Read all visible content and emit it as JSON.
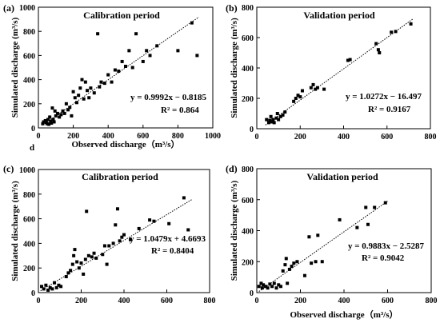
{
  "stray_label": "d",
  "chart_data": [
    {
      "type": "scatter",
      "panel_label": "(a)",
      "title": "Calibration period",
      "xlabel": "Observed discharge（m³/s）",
      "ylabel": "Simulated discharge (m³/s)",
      "xlim": [
        0,
        1000
      ],
      "ylim": [
        0,
        1000
      ],
      "xticks": [
        0,
        200,
        400,
        600,
        800,
        1000
      ],
      "yticks": [
        0,
        200,
        400,
        600,
        800,
        1000
      ],
      "equation": "y = 0.9992x − 0.8185",
      "r2": "R² = 0.864",
      "fit": {
        "slope": 0.9992,
        "intercept": -0.8185,
        "x_range": [
          25,
          920
        ]
      },
      "points": [
        [
          25,
          35
        ],
        [
          30,
          50
        ],
        [
          40,
          60
        ],
        [
          45,
          45
        ],
        [
          50,
          35
        ],
        [
          55,
          70
        ],
        [
          60,
          30
        ],
        [
          65,
          90
        ],
        [
          70,
          55
        ],
        [
          75,
          40
        ],
        [
          80,
          165
        ],
        [
          85,
          70
        ],
        [
          90,
          50
        ],
        [
          95,
          140
        ],
        [
          100,
          100
        ],
        [
          110,
          120
        ],
        [
          120,
          90
        ],
        [
          130,
          110
        ],
        [
          140,
          140
        ],
        [
          150,
          120
        ],
        [
          160,
          200
        ],
        [
          170,
          150
        ],
        [
          180,
          170
        ],
        [
          190,
          100
        ],
        [
          200,
          300
        ],
        [
          210,
          250
        ],
        [
          220,
          210
        ],
        [
          230,
          270
        ],
        [
          240,
          330
        ],
        [
          250,
          400
        ],
        [
          260,
          240
        ],
        [
          270,
          380
        ],
        [
          280,
          310
        ],
        [
          290,
          250
        ],
        [
          300,
          330
        ],
        [
          320,
          290
        ],
        [
          340,
          780
        ],
        [
          350,
          340
        ],
        [
          360,
          380
        ],
        [
          380,
          370
        ],
        [
          400,
          440
        ],
        [
          420,
          380
        ],
        [
          440,
          480
        ],
        [
          460,
          470
        ],
        [
          480,
          550
        ],
        [
          500,
          510
        ],
        [
          520,
          640
        ],
        [
          540,
          500
        ],
        [
          560,
          780
        ],
        [
          600,
          550
        ],
        [
          620,
          640
        ],
        [
          640,
          600
        ],
        [
          680,
          680
        ],
        [
          800,
          640
        ],
        [
          880,
          870
        ],
        [
          910,
          600
        ]
      ]
    },
    {
      "type": "scatter",
      "panel_label": "(b)",
      "title": "Validation period",
      "xlabel": "",
      "ylabel": "Simulated discharge (m³/s)",
      "xlim": [
        0,
        800
      ],
      "ylim": [
        0,
        800
      ],
      "xticks": [
        0,
        200,
        400,
        600,
        800
      ],
      "yticks": [
        0,
        200,
        400,
        600,
        800
      ],
      "equation": "y = 1.0272x − 16.497",
      "r2": "R² = 0.9167",
      "fit": {
        "slope": 1.0272,
        "intercept": -16.497,
        "x_range": [
          40,
          720
        ]
      },
      "points": [
        [
          45,
          60
        ],
        [
          55,
          40
        ],
        [
          60,
          55
        ],
        [
          65,
          80
        ],
        [
          70,
          45
        ],
        [
          75,
          60
        ],
        [
          80,
          40
        ],
        [
          90,
          70
        ],
        [
          95,
          100
        ],
        [
          100,
          60
        ],
        [
          110,
          80
        ],
        [
          120,
          90
        ],
        [
          130,
          110
        ],
        [
          170,
          180
        ],
        [
          180,
          200
        ],
        [
          190,
          220
        ],
        [
          200,
          210
        ],
        [
          210,
          250
        ],
        [
          250,
          270
        ],
        [
          260,
          290
        ],
        [
          270,
          260
        ],
        [
          280,
          270
        ],
        [
          310,
          260
        ],
        [
          420,
          450
        ],
        [
          430,
          455
        ],
        [
          550,
          560
        ],
        [
          560,
          520
        ],
        [
          565,
          500
        ],
        [
          620,
          635
        ],
        [
          640,
          640
        ],
        [
          710,
          690
        ]
      ]
    },
    {
      "type": "scatter",
      "panel_label": "(c)",
      "title": "Calibration period",
      "xlabel": "",
      "ylabel": "Simulated discharge (m³/s)",
      "xlim": [
        0,
        800
      ],
      "ylim": [
        0,
        1000
      ],
      "xticks": [
        0,
        200,
        400,
        600,
        800
      ],
      "yticks": [
        0,
        200,
        400,
        600,
        800,
        1000
      ],
      "equation": "y = 1.0479x + 4.6693",
      "r2": "R² = 0.8404",
      "fit": {
        "slope": 1.0479,
        "intercept": 4.6693,
        "x_range": [
          10,
          720
        ]
      },
      "points": [
        [
          15,
          50
        ],
        [
          25,
          30
        ],
        [
          35,
          60
        ],
        [
          45,
          20
        ],
        [
          55,
          40
        ],
        [
          65,
          30
        ],
        [
          75,
          80
        ],
        [
          85,
          40
        ],
        [
          95,
          60
        ],
        [
          105,
          50
        ],
        [
          130,
          130
        ],
        [
          140,
          160
        ],
        [
          150,
          180
        ],
        [
          160,
          230
        ],
        [
          165,
          300
        ],
        [
          170,
          350
        ],
        [
          180,
          250
        ],
        [
          190,
          200
        ],
        [
          200,
          240
        ],
        [
          210,
          150
        ],
        [
          220,
          270
        ],
        [
          225,
          660
        ],
        [
          235,
          300
        ],
        [
          250,
          290
        ],
        [
          260,
          320
        ],
        [
          270,
          280
        ],
        [
          300,
          310
        ],
        [
          310,
          380
        ],
        [
          320,
          230
        ],
        [
          330,
          380
        ],
        [
          350,
          400
        ],
        [
          360,
          550
        ],
        [
          370,
          680
        ],
        [
          380,
          420
        ],
        [
          390,
          450
        ],
        [
          400,
          470
        ],
        [
          430,
          430
        ],
        [
          470,
          520
        ],
        [
          520,
          590
        ],
        [
          540,
          580
        ],
        [
          610,
          560
        ],
        [
          680,
          770
        ],
        [
          700,
          510
        ]
      ]
    },
    {
      "type": "scatter",
      "panel_label": "(d)",
      "title": "Validation period",
      "xlabel": "Observed discharge（m³/s）",
      "ylabel": "Simulated discharge (m³/s)",
      "xlim": [
        0,
        800
      ],
      "ylim": [
        0,
        800
      ],
      "xticks": [
        0,
        200,
        400,
        600,
        800
      ],
      "yticks": [
        0,
        200,
        400,
        600,
        800
      ],
      "equation": "y = 0.9883x − 2.5287",
      "r2": "R² = 0.9042",
      "fit": {
        "slope": 0.9883,
        "intercept": -2.5287,
        "x_range": [
          10,
          600
        ]
      },
      "points": [
        [
          10,
          40
        ],
        [
          20,
          60
        ],
        [
          25,
          30
        ],
        [
          30,
          50
        ],
        [
          40,
          40
        ],
        [
          50,
          30
        ],
        [
          60,
          55
        ],
        [
          70,
          40
        ],
        [
          80,
          60
        ],
        [
          90,
          30
        ],
        [
          100,
          50
        ],
        [
          110,
          40
        ],
        [
          120,
          140
        ],
        [
          130,
          180
        ],
        [
          135,
          220
        ],
        [
          140,
          60
        ],
        [
          150,
          150
        ],
        [
          160,
          170
        ],
        [
          170,
          190
        ],
        [
          185,
          200
        ],
        [
          220,
          110
        ],
        [
          240,
          360
        ],
        [
          250,
          190
        ],
        [
          270,
          200
        ],
        [
          280,
          370
        ],
        [
          300,
          200
        ],
        [
          380,
          470
        ],
        [
          460,
          420
        ],
        [
          500,
          550
        ],
        [
          510,
          440
        ],
        [
          540,
          550
        ],
        [
          590,
          580
        ]
      ]
    }
  ]
}
